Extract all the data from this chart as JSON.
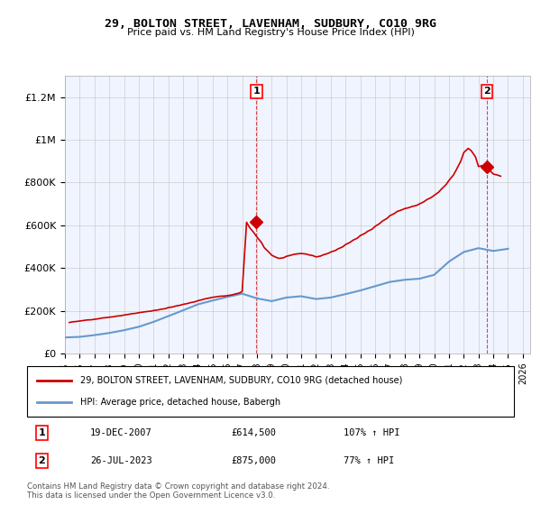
{
  "title": "29, BOLTON STREET, LAVENHAM, SUDBURY, CO10 9RG",
  "subtitle": "Price paid vs. HM Land Registry's House Price Index (HPI)",
  "ylabel_ticks": [
    "£0",
    "£200K",
    "£400K",
    "£600K",
    "£800K",
    "£1M",
    "£1.2M"
  ],
  "ylim": [
    0,
    1300000
  ],
  "xlim_start": 1995.0,
  "xlim_end": 2026.5,
  "legend_line1": "29, BOLTON STREET, LAVENHAM, SUDBURY, CO10 9RG (detached house)",
  "legend_line2": "HPI: Average price, detached house, Babergh",
  "sale1_label": "1",
  "sale1_date": "19-DEC-2007",
  "sale1_price": "£614,500",
  "sale1_pct": "107% ↑ HPI",
  "sale2_label": "2",
  "sale2_date": "26-JUL-2023",
  "sale2_price": "£875,000",
  "sale2_pct": "77% ↑ HPI",
  "footer": "Contains HM Land Registry data © Crown copyright and database right 2024.\nThis data is licensed under the Open Government Licence v3.0.",
  "red_color": "#cc0000",
  "blue_color": "#6699cc",
  "sale_marker_color": "#cc0000",
  "background_color": "#ffffff",
  "grid_color": "#cccccc",
  "hpi_years": [
    1995,
    1996,
    1997,
    1998,
    1999,
    2000,
    2001,
    2002,
    2003,
    2004,
    2005,
    2006,
    2007,
    2008,
    2009,
    2010,
    2011,
    2012,
    2013,
    2014,
    2015,
    2016,
    2017,
    2018,
    2019,
    2020,
    2021,
    2022,
    2023,
    2024,
    2025
  ],
  "hpi_values": [
    75000,
    78000,
    86000,
    96000,
    109000,
    125000,
    148000,
    175000,
    202000,
    230000,
    248000,
    265000,
    280000,
    258000,
    245000,
    262000,
    268000,
    255000,
    262000,
    278000,
    295000,
    315000,
    335000,
    345000,
    350000,
    368000,
    430000,
    475000,
    493000,
    480000,
    490000
  ],
  "property_years": [
    1995.3,
    1995.5,
    1995.8,
    1996.0,
    1996.3,
    1996.5,
    1996.8,
    1997.0,
    1997.3,
    1997.5,
    1997.8,
    1998.0,
    1998.3,
    1998.5,
    1998.8,
    1999.0,
    1999.3,
    1999.5,
    1999.8,
    2000.0,
    2000.3,
    2000.5,
    2000.8,
    2001.0,
    2001.3,
    2001.5,
    2001.8,
    2002.0,
    2002.3,
    2002.5,
    2002.8,
    2003.0,
    2003.3,
    2003.5,
    2003.8,
    2004.0,
    2004.3,
    2004.5,
    2004.8,
    2005.0,
    2005.3,
    2005.5,
    2005.8,
    2006.0,
    2006.3,
    2006.5,
    2006.8,
    2007.0,
    2007.3,
    2007.5,
    2007.8,
    2008.0,
    2008.3,
    2008.5,
    2008.8,
    2009.0,
    2009.3,
    2009.5,
    2009.8,
    2010.0,
    2010.3,
    2010.5,
    2010.8,
    2011.0,
    2011.3,
    2011.5,
    2011.8,
    2012.0,
    2012.3,
    2012.5,
    2012.8,
    2013.0,
    2013.3,
    2013.5,
    2013.8,
    2014.0,
    2014.3,
    2014.5,
    2014.8,
    2015.0,
    2015.3,
    2015.5,
    2015.8,
    2016.0,
    2016.3,
    2016.5,
    2016.8,
    2017.0,
    2017.3,
    2017.5,
    2017.8,
    2018.0,
    2018.3,
    2018.5,
    2018.8,
    2019.0,
    2019.3,
    2019.5,
    2019.8,
    2020.0,
    2020.3,
    2020.5,
    2020.8,
    2021.0,
    2021.3,
    2021.5,
    2021.8,
    2022.0,
    2022.3,
    2022.5,
    2022.8,
    2023.0,
    2023.3,
    2023.5,
    2023.8,
    2024.0,
    2024.3,
    2024.5
  ],
  "property_values": [
    145000,
    148000,
    150000,
    152000,
    155000,
    157000,
    158000,
    160000,
    163000,
    166000,
    168000,
    170000,
    172000,
    175000,
    177000,
    180000,
    183000,
    186000,
    188000,
    191000,
    194000,
    196000,
    198000,
    201000,
    204000,
    207000,
    210000,
    215000,
    218000,
    222000,
    226000,
    230000,
    234000,
    238000,
    242000,
    247000,
    252000,
    256000,
    260000,
    263000,
    266000,
    268000,
    269000,
    271000,
    274000,
    278000,
    283000,
    290000,
    614500,
    590000,
    565000,
    545000,
    520000,
    495000,
    475000,
    460000,
    450000,
    445000,
    448000,
    455000,
    460000,
    464000,
    467000,
    468000,
    466000,
    462000,
    458000,
    452000,
    456000,
    462000,
    468000,
    475000,
    482000,
    490000,
    499000,
    510000,
    520000,
    530000,
    540000,
    552000,
    562000,
    572000,
    582000,
    595000,
    608000,
    620000,
    632000,
    645000,
    655000,
    665000,
    672000,
    678000,
    683000,
    688000,
    693000,
    700000,
    710000,
    720000,
    730000,
    740000,
    755000,
    770000,
    790000,
    810000,
    835000,
    860000,
    900000,
    940000,
    960000,
    950000,
    920000,
    875000,
    880000,
    870000,
    855000,
    840000,
    835000,
    830000
  ],
  "sale1_x": 2007.97,
  "sale1_y": 614500,
  "sale2_x": 2023.57,
  "sale2_y": 875000
}
